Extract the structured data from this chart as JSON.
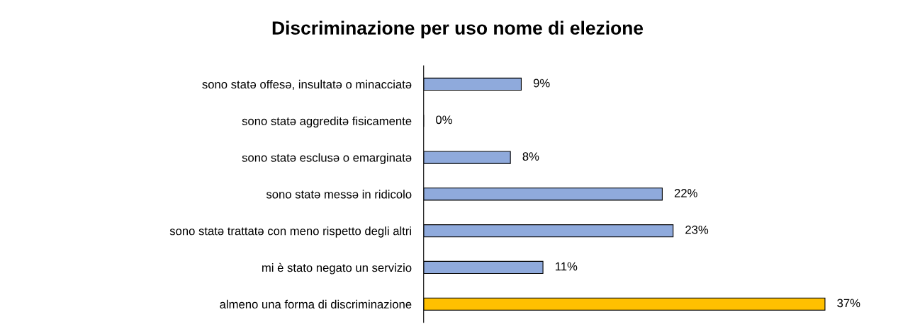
{
  "chart_data": {
    "type": "bar",
    "orientation": "horizontal",
    "title": "Discriminazione per uso nome di elezione",
    "categories": [
      "sono statə offesə, insultatə o minacciatə",
      "sono statə aggreditə fisicamente",
      "sono statə esclusə o emarginatə",
      "sono statə messə in ridicolo",
      "sono statə trattatə con meno rispetto degli altri",
      "mi è stato negato un servizio",
      "almeno una forma di discriminazione"
    ],
    "values": [
      9,
      0,
      8,
      22,
      23,
      11,
      37
    ],
    "colors": [
      "#8faadc",
      "#8faadc",
      "#8faadc",
      "#8faadc",
      "#8faadc",
      "#8faadc",
      "#ffc000"
    ],
    "value_labels": [
      "9%",
      "0%",
      "8%",
      "22%",
      "23%",
      "11%",
      "37%"
    ],
    "grid": false,
    "legend": false
  }
}
